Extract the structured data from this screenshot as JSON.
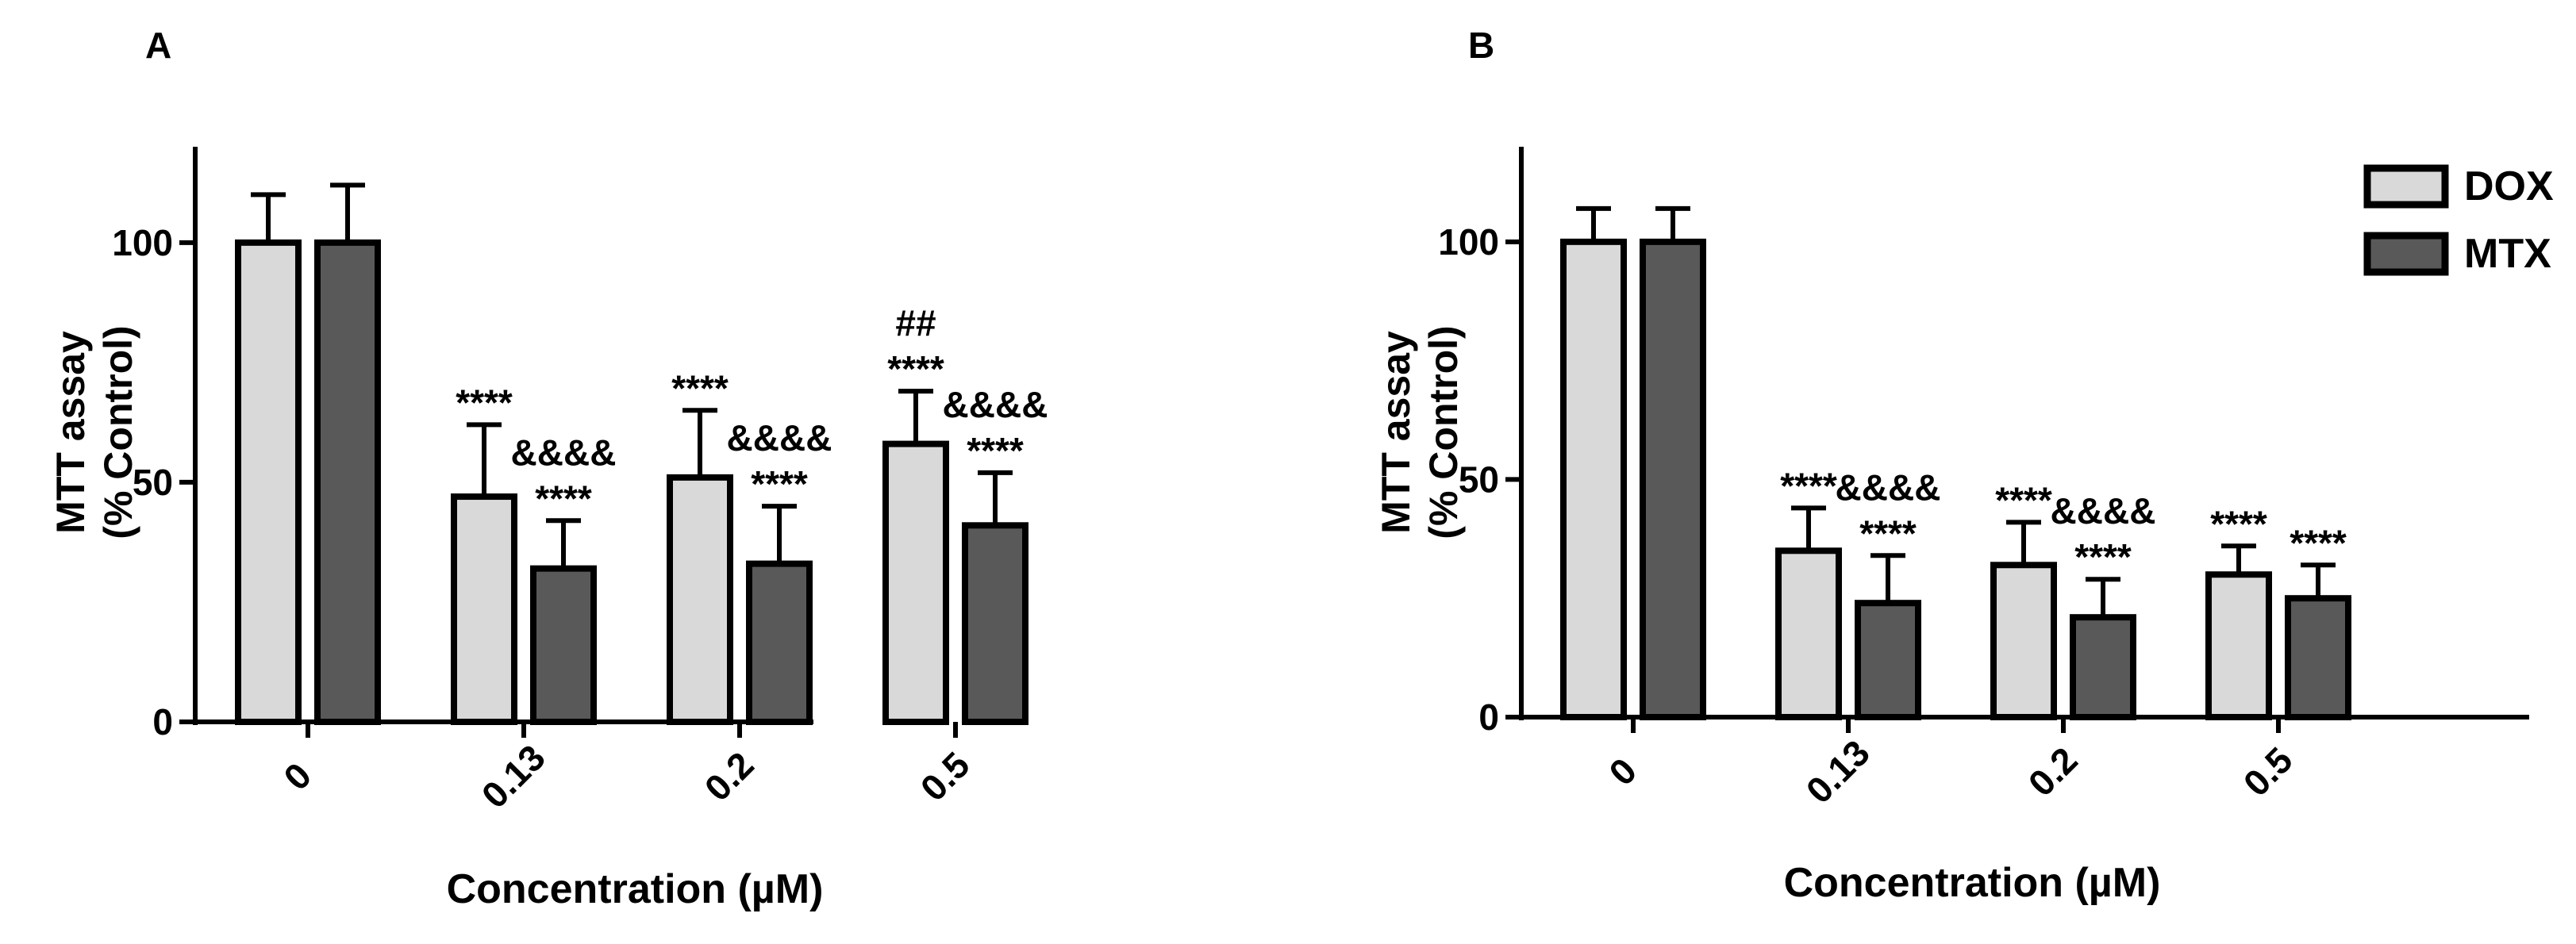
{
  "colors": {
    "dox": "#d9d9d9",
    "mtx": "#595959",
    "stroke": "#000000"
  },
  "legend": {
    "items": [
      {
        "label": "DOX",
        "color_key": "dox"
      },
      {
        "label": "MTX",
        "color_key": "mtx"
      }
    ]
  },
  "chart_data": [
    {
      "panel": "A",
      "type": "bar",
      "title": "",
      "xlabel": "Concentration (µM)",
      "ylabel_line1": "MTT assay",
      "ylabel_line2": "(% Control)",
      "ylim": [
        0,
        120
      ],
      "yticks": [
        0,
        50,
        100
      ],
      "grid": false,
      "categories": [
        "0",
        "0.13",
        "0.2",
        "0.5"
      ],
      "series": [
        {
          "name": "DOX",
          "color_key": "dox",
          "values": [
            100,
            47,
            51,
            58
          ],
          "errors": [
            10,
            15,
            14,
            11
          ]
        },
        {
          "name": "MTX",
          "color_key": "mtx",
          "values": [
            100,
            32,
            33,
            41
          ],
          "errors": [
            12,
            10,
            12,
            11
          ]
        }
      ],
      "annotations": [
        {
          "series": 0,
          "category": 1,
          "lines": [
            "****"
          ]
        },
        {
          "series": 1,
          "category": 1,
          "lines": [
            "&&&&",
            "****"
          ]
        },
        {
          "series": 0,
          "category": 2,
          "lines": [
            "****"
          ]
        },
        {
          "series": 1,
          "category": 2,
          "lines": [
            "&&&&",
            "****"
          ]
        },
        {
          "series": 0,
          "category": 3,
          "lines": [
            "##",
            "****"
          ]
        },
        {
          "series": 1,
          "category": 3,
          "lines": [
            "&&&&",
            "****"
          ]
        }
      ]
    },
    {
      "panel": "B",
      "type": "bar",
      "title": "",
      "xlabel": "Concentration (µM)",
      "ylabel_line1": "MTT assay",
      "ylabel_line2": "(% Control)",
      "ylim": [
        0,
        120
      ],
      "yticks": [
        0,
        50,
        100
      ],
      "grid": false,
      "legend_position": "top-right",
      "categories": [
        "0",
        "0.13",
        "0.2",
        "0.5"
      ],
      "series": [
        {
          "name": "DOX",
          "color_key": "dox",
          "values": [
            100,
            35,
            32,
            30
          ],
          "errors": [
            7,
            9,
            9,
            6
          ]
        },
        {
          "name": "MTX",
          "color_key": "mtx",
          "values": [
            100,
            24,
            21,
            25
          ],
          "errors": [
            7,
            10,
            8,
            7
          ]
        }
      ],
      "annotations": [
        {
          "series": 0,
          "category": 1,
          "lines": [
            "****"
          ]
        },
        {
          "series": 1,
          "category": 1,
          "lines": [
            "&&&&",
            "****"
          ]
        },
        {
          "series": 0,
          "category": 2,
          "lines": [
            "****"
          ]
        },
        {
          "series": 1,
          "category": 2,
          "lines": [
            "&&&&",
            "****"
          ]
        },
        {
          "series": 0,
          "category": 3,
          "lines": [
            "****"
          ]
        },
        {
          "series": 1,
          "category": 3,
          "lines": [
            "****"
          ]
        }
      ]
    }
  ]
}
